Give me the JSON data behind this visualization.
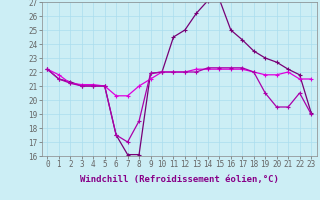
{
  "xlabel": "Windchill (Refroidissement éolien,°C)",
  "xlim": [
    -0.5,
    23.5
  ],
  "ylim": [
    16,
    27
  ],
  "xticks": [
    0,
    1,
    2,
    3,
    4,
    5,
    6,
    7,
    8,
    9,
    10,
    11,
    12,
    13,
    14,
    15,
    16,
    17,
    18,
    19,
    20,
    21,
    22,
    23
  ],
  "yticks": [
    16,
    17,
    18,
    19,
    20,
    21,
    22,
    23,
    24,
    25,
    26,
    27
  ],
  "background_color": "#cceef5",
  "grid_color": "#aaddee",
  "line1_color": "#dd00dd",
  "line2_color": "#aa00aa",
  "line3_color": "#770077",
  "line1_x": [
    0,
    1,
    2,
    3,
    4,
    5,
    6,
    7,
    8,
    9,
    10,
    11,
    12,
    13,
    14,
    15,
    16,
    17,
    18,
    19,
    20,
    21,
    22,
    23
  ],
  "line1_y": [
    22.2,
    21.8,
    21.2,
    21.1,
    21.1,
    21.0,
    20.3,
    20.3,
    21.0,
    21.5,
    22.0,
    22.0,
    22.0,
    22.2,
    22.2,
    22.2,
    22.2,
    22.2,
    22.0,
    21.8,
    21.8,
    22.0,
    21.5,
    21.5
  ],
  "line2_x": [
    0,
    1,
    2,
    3,
    4,
    5,
    6,
    7,
    8,
    9,
    10,
    11,
    12,
    13,
    14,
    15,
    16,
    17,
    18,
    19,
    20,
    21,
    22,
    23
  ],
  "line2_y": [
    22.2,
    21.5,
    21.2,
    21.0,
    21.0,
    21.0,
    17.5,
    17.0,
    18.5,
    21.9,
    22.0,
    22.0,
    22.0,
    22.0,
    22.3,
    22.3,
    22.3,
    22.3,
    22.0,
    20.5,
    19.5,
    19.5,
    20.5,
    19.0
  ],
  "line3_x": [
    0,
    1,
    2,
    3,
    4,
    5,
    6,
    7,
    8,
    9,
    10,
    11,
    12,
    13,
    14,
    15,
    16,
    17,
    18,
    19,
    20,
    21,
    22,
    23
  ],
  "line3_y": [
    22.2,
    21.5,
    21.3,
    21.0,
    21.0,
    21.0,
    17.5,
    16.1,
    16.1,
    21.9,
    22.0,
    24.5,
    25.0,
    26.2,
    27.1,
    27.2,
    25.0,
    24.3,
    23.5,
    23.0,
    22.7,
    22.2,
    21.8,
    19.1
  ],
  "tick_fontsize": 5.5,
  "label_fontsize": 6.5,
  "marker_size": 2.5
}
